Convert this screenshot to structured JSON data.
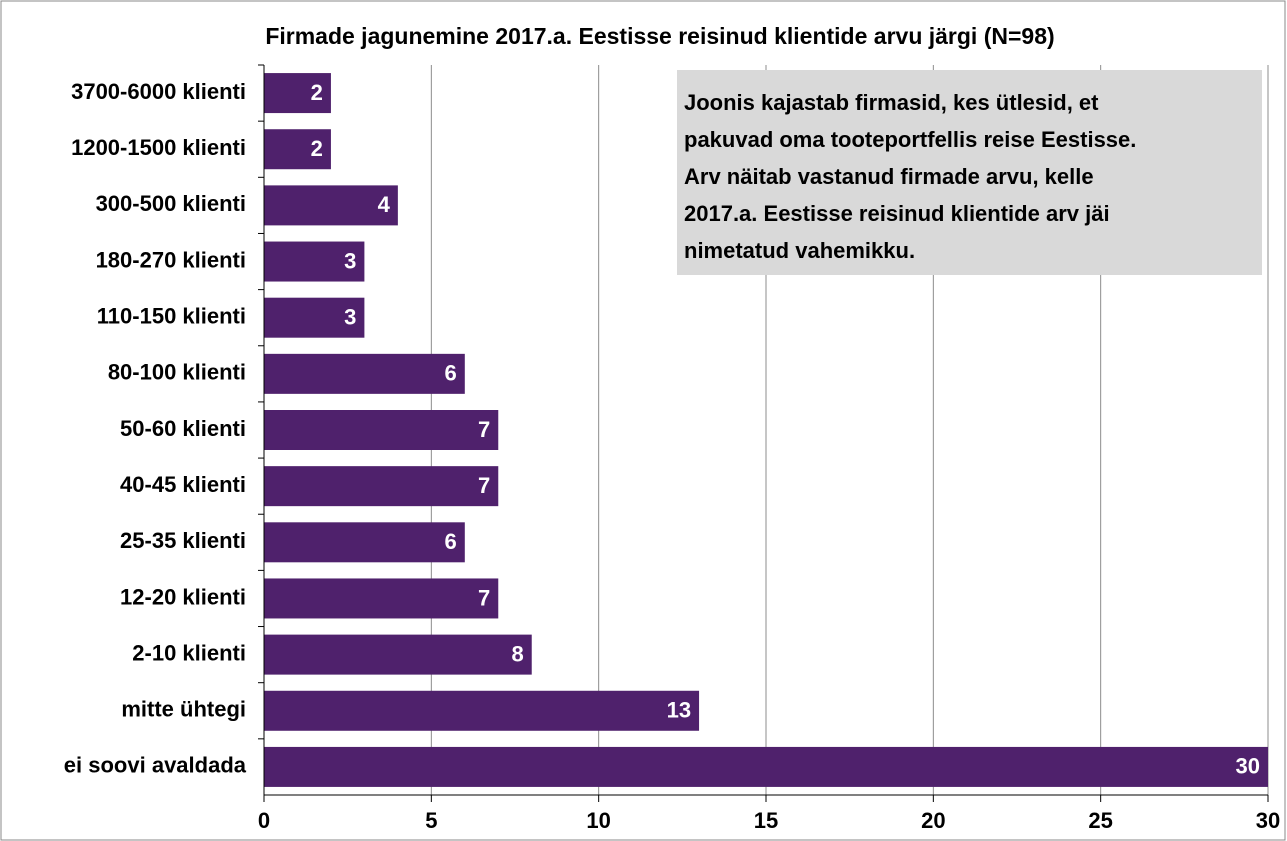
{
  "chart_data": {
    "type": "hbar",
    "title": "Firmade jagunemine 2017.a. Eestisse reisinud klientide arvu järgi (N=98)",
    "categories": [
      "3700-6000 klienti",
      "1200-1500 klienti",
      "300-500 klienti",
      "180-270 klienti",
      "110-150 klienti",
      "80-100 klienti",
      "50-60 klienti",
      "40-45 klienti",
      "25-35 klienti",
      "12-20 klienti",
      "2-10 klienti",
      "mitte ühtegi",
      "ei soovi avaldada"
    ],
    "values": [
      2,
      2,
      4,
      3,
      3,
      6,
      7,
      7,
      6,
      7,
      8,
      13,
      30
    ],
    "color": "#4f216c",
    "xlim": [
      0,
      30
    ],
    "xticks": [
      0,
      5,
      10,
      15,
      20,
      25,
      30
    ],
    "grid": true,
    "annotation": [
      "Joonis kajastab firmasid, kes ütlesid, et",
      "pakuvad oma tooteportfellis reise Eestisse.",
      "Arv näitab vastanud firmade arvu, kelle",
      "2017.a. Eestisse reisinud klientide arv jäi",
      "nimetatud vahemikku."
    ]
  }
}
